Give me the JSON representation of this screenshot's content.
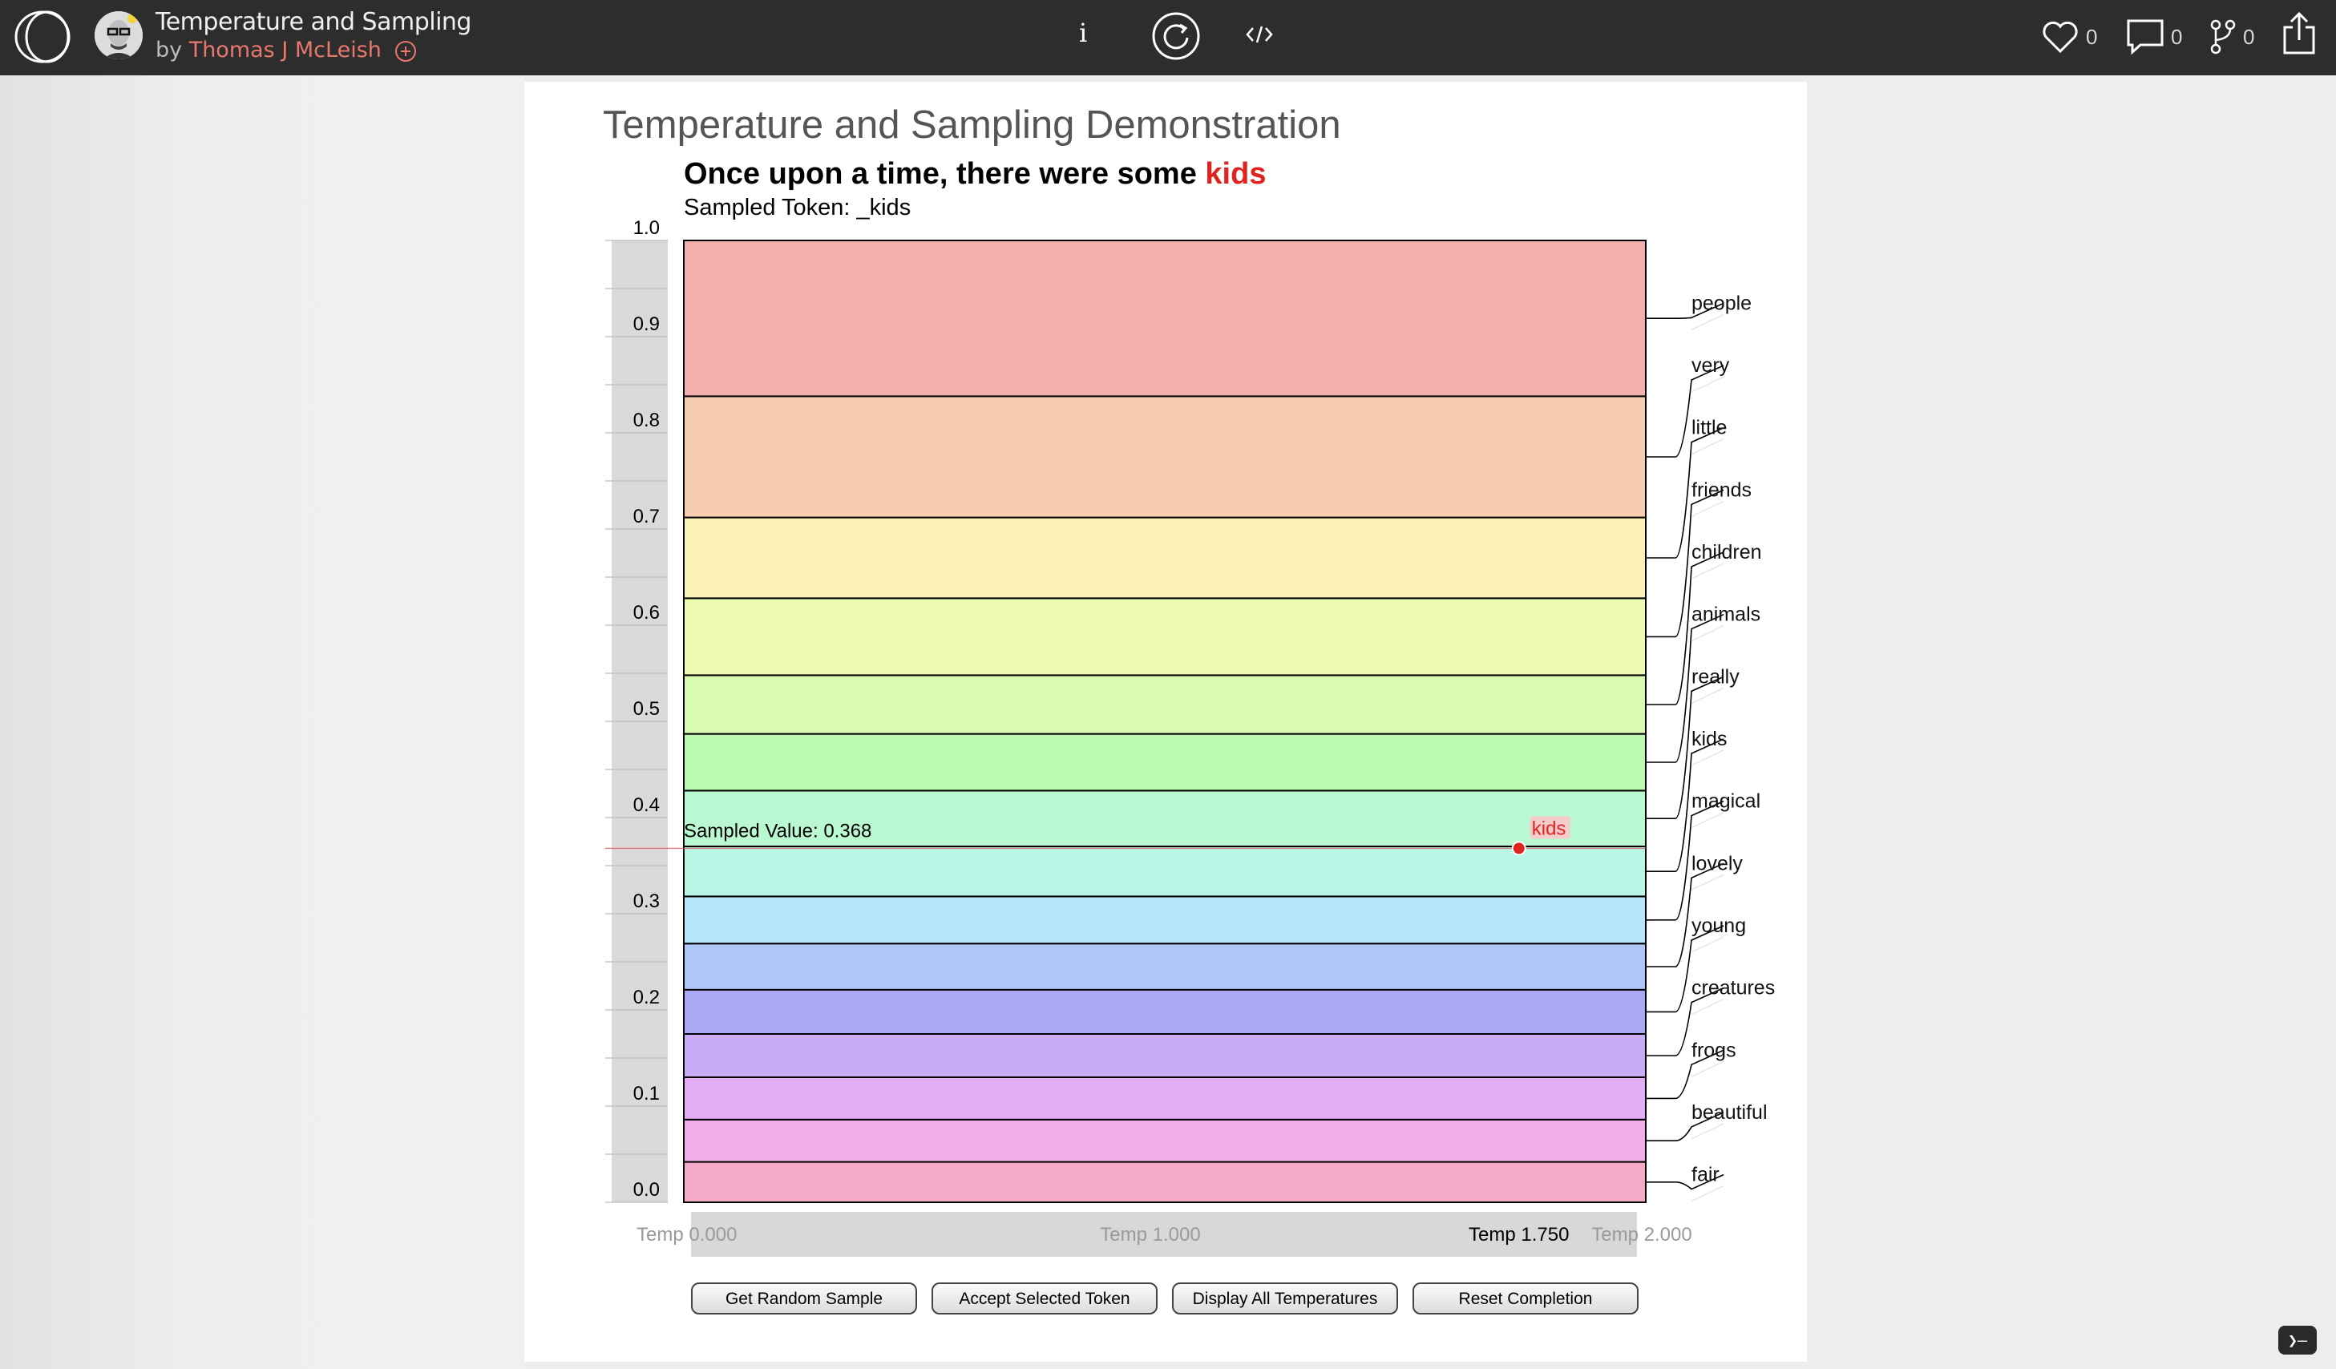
{
  "topbar": {
    "title": "Temperature and Sampling",
    "by_prefix": "by ",
    "author": "Thomas J McLeish",
    "likes": "0",
    "comments": "0",
    "forks": "0",
    "info_label": "i"
  },
  "page": {
    "title": "Temperature and Sampling Demonstration",
    "headline_prefix": "Once upon a time, there were some ",
    "headline_token": "kids",
    "sampled_token": "Sampled Token: _kids"
  },
  "colors": {
    "topbar": "#2d2d2d",
    "accent_red": "#e0231f",
    "author": "#e8786c"
  },
  "chart_data": {
    "type": "bar",
    "orientation": "stacked-probability-column",
    "ylim": [
      0,
      1
    ],
    "y_ticks": [
      "0.0",
      "0.1",
      "0.2",
      "0.3",
      "0.4",
      "0.5",
      "0.6",
      "0.7",
      "0.8",
      "0.9",
      "1.0"
    ],
    "segments": [
      {
        "token": "fair",
        "start": 0.0,
        "end": 0.042,
        "color": "#f3a9c7"
      },
      {
        "token": "beautiful",
        "start": 0.042,
        "end": 0.086,
        "color": "#efaee9"
      },
      {
        "token": "frogs",
        "start": 0.086,
        "end": 0.13,
        "color": "#e6adf7"
      },
      {
        "token": "creatures",
        "start": 0.13,
        "end": 0.175,
        "color": "#c8acf5"
      },
      {
        "token": "young",
        "start": 0.175,
        "end": 0.221,
        "color": "#aaa8f5"
      },
      {
        "token": "lovely",
        "start": 0.221,
        "end": 0.269,
        "color": "#b0c6f8"
      },
      {
        "token": "magical",
        "start": 0.269,
        "end": 0.318,
        "color": "#b6e5f9"
      },
      {
        "token": "kids",
        "start": 0.318,
        "end": 0.37,
        "color": "#b8f7e6"
      },
      {
        "token": "really",
        "start": 0.37,
        "end": 0.428,
        "color": "#baf8d1"
      },
      {
        "token": "animals",
        "start": 0.428,
        "end": 0.487,
        "color": "#bcf9b0"
      },
      {
        "token": "children",
        "start": 0.487,
        "end": 0.548,
        "color": "#d9fbb0"
      },
      {
        "token": "friends",
        "start": 0.548,
        "end": 0.628,
        "color": "#eefbb4"
      },
      {
        "token": "little",
        "start": 0.628,
        "end": 0.712,
        "color": "#fbf0b6"
      },
      {
        "token": "very",
        "start": 0.712,
        "end": 0.838,
        "color": "#f6cdb0"
      },
      {
        "token": "people",
        "start": 0.838,
        "end": 1.0,
        "color": "#f2afae"
      }
    ],
    "sampled_value": 0.368,
    "sampled_value_label": "Sampled Value: 0.368",
    "sampled_token": "kids",
    "temperature": {
      "min": 0.0,
      "max": 2.0,
      "current": 1.75,
      "min_label": "Temp 0.000",
      "mid_label": "Temp 1.000",
      "max_label": "Temp 2.000",
      "current_label": "Temp 1.750"
    }
  },
  "buttons": {
    "random": "Get Random Sample",
    "accept": "Accept Selected Token",
    "display": "Display All Temperatures",
    "reset": "Reset Completion"
  },
  "console_label": "❯—"
}
